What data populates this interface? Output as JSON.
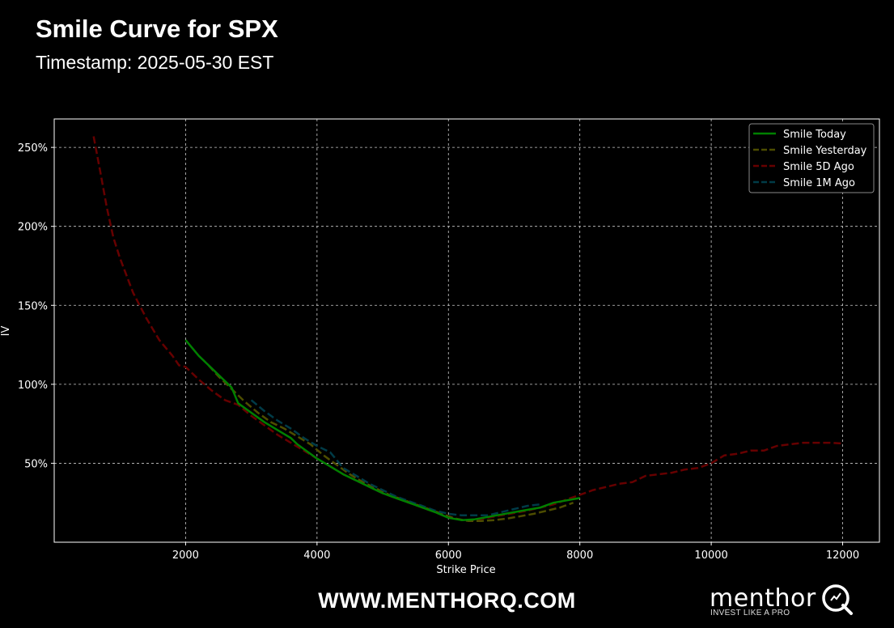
{
  "header": {
    "title": "Smile Curve for SPX",
    "subtitle": "Timestamp: 2025-05-30 EST"
  },
  "footer": {
    "website": "WWW.MENTHORQ.COM",
    "brand_name": "menthor",
    "brand_tagline": "INVEST LIKE A PRO",
    "logo_icon": "q-magnifier-logo-icon"
  },
  "colors": {
    "background": "#000000",
    "grid": "#cccccc",
    "smile_today": "#008000",
    "smile_yesterday": "#4d4d00",
    "smile_5d_ago": "#660000",
    "smile_1m_ago": "#003b47"
  },
  "chart_data": {
    "type": "line",
    "xlabel": "Strike Price",
    "ylabel": "IV",
    "xlim": [
      0,
      12560
    ],
    "ylim": [
      0,
      2.68
    ],
    "xticks": [
      2000,
      4000,
      6000,
      8000,
      10000,
      12000
    ],
    "yticks": [
      0.5,
      1.0,
      1.5,
      2.0,
      2.5
    ],
    "ytick_format": "percent",
    "grid": true,
    "legend_position": "top-right",
    "series": [
      {
        "name": "Smile Today",
        "style": "solid",
        "color": "#008000",
        "x": [
          2000,
          2200,
          2400,
          2600,
          2700,
          2800,
          3000,
          3200,
          3400,
          3600,
          3700,
          3800,
          4000,
          4200,
          4400,
          4600,
          4800,
          5000,
          5200,
          5400,
          5600,
          5800,
          6000,
          6200,
          6400,
          6600,
          6800,
          7000,
          7200,
          7400,
          7600,
          7800,
          8000
        ],
        "y": [
          1.28,
          1.18,
          1.1,
          1.02,
          0.98,
          0.88,
          0.82,
          0.76,
          0.71,
          0.66,
          0.62,
          0.59,
          0.53,
          0.48,
          0.43,
          0.39,
          0.35,
          0.31,
          0.28,
          0.25,
          0.22,
          0.19,
          0.155,
          0.14,
          0.145,
          0.16,
          0.175,
          0.19,
          0.205,
          0.22,
          0.25,
          0.265,
          0.28
        ]
      },
      {
        "name": "Smile Yesterday",
        "style": "dashed",
        "color": "#4d4d00",
        "x": [
          2350,
          2500,
          2700,
          2900,
          3100,
          3300,
          3500,
          3700,
          3900,
          4100,
          4300,
          4500,
          4700,
          4900,
          5100,
          5300,
          5500,
          5700,
          5900,
          6100,
          6300,
          6500,
          6700,
          6900,
          7100,
          7300,
          7500,
          7700,
          7900
        ],
        "y": [
          1.12,
          1.05,
          0.97,
          0.89,
          0.82,
          0.76,
          0.72,
          0.67,
          0.62,
          0.55,
          0.49,
          0.43,
          0.38,
          0.34,
          0.3,
          0.27,
          0.24,
          0.21,
          0.18,
          0.15,
          0.135,
          0.135,
          0.14,
          0.15,
          0.165,
          0.18,
          0.2,
          0.22,
          0.25
        ]
      },
      {
        "name": "Smile 5D Ago",
        "style": "dashed",
        "color": "#660000",
        "x": [
          600,
          700,
          800,
          900,
          1000,
          1200,
          1400,
          1600,
          1800,
          1900,
          2000,
          2200,
          2400,
          2600,
          2800,
          3000,
          3200,
          3400,
          3600,
          3800,
          4000,
          4200,
          4400,
          4600,
          4800,
          5000,
          5200,
          5400,
          5600,
          5800,
          6000,
          6200,
          6400,
          6600,
          6800,
          7000,
          7200,
          7400,
          7600,
          7800,
          8000,
          8200,
          8400,
          8600,
          8800,
          9000,
          9200,
          9400,
          9600,
          9800,
          10000,
          10200,
          10400,
          10600,
          10800,
          11000,
          11200,
          11400,
          11600,
          11800,
          12000
        ],
        "y": [
          2.57,
          2.35,
          2.12,
          1.93,
          1.8,
          1.58,
          1.42,
          1.28,
          1.18,
          1.12,
          1.11,
          1.03,
          0.96,
          0.9,
          0.87,
          0.8,
          0.74,
          0.68,
          0.63,
          0.58,
          0.53,
          0.48,
          0.43,
          0.39,
          0.35,
          0.31,
          0.28,
          0.25,
          0.22,
          0.19,
          0.16,
          0.14,
          0.14,
          0.155,
          0.17,
          0.185,
          0.2,
          0.22,
          0.24,
          0.27,
          0.3,
          0.33,
          0.35,
          0.37,
          0.38,
          0.42,
          0.43,
          0.44,
          0.46,
          0.47,
          0.5,
          0.55,
          0.56,
          0.58,
          0.58,
          0.61,
          0.62,
          0.63,
          0.63,
          0.63,
          0.625
        ]
      },
      {
        "name": "Smile 1M Ago",
        "style": "dashed",
        "color": "#003b47",
        "x": [
          3000,
          3200,
          3400,
          3600,
          3800,
          4000,
          4200,
          4300,
          4400,
          4600,
          4800,
          5000,
          5200,
          5400,
          5600,
          5800,
          6000,
          6200,
          6400,
          6600,
          6800,
          7000,
          7200,
          7400
        ],
        "y": [
          0.9,
          0.83,
          0.77,
          0.72,
          0.66,
          0.61,
          0.57,
          0.52,
          0.47,
          0.42,
          0.37,
          0.33,
          0.29,
          0.26,
          0.23,
          0.2,
          0.18,
          0.17,
          0.17,
          0.17,
          0.19,
          0.21,
          0.23,
          0.24
        ]
      }
    ]
  }
}
